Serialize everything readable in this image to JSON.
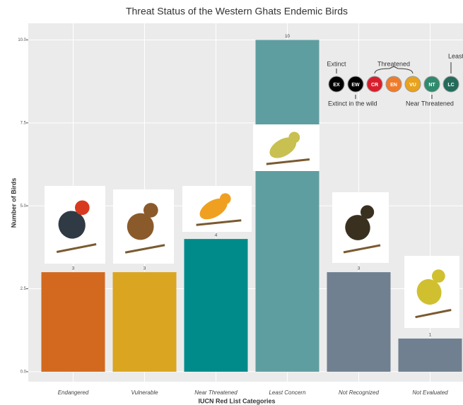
{
  "chart_data": {
    "type": "bar",
    "title": "Threat Status of the Western Ghats Endemic Birds",
    "x_label": "IUCN Red List Categories",
    "y_label": "Number of Birds",
    "categories": [
      "Endangered",
      "Vulnerable",
      "Near Threatened",
      "Least Concern",
      "Not Recognized",
      "Not Evaluated"
    ],
    "values": [
      3,
      3,
      4,
      10,
      3,
      1
    ],
    "value_labels": [
      "3",
      "3",
      "4",
      "10",
      "3",
      "1"
    ],
    "colors": [
      "#d2691e",
      "#daa520",
      "#008b8b",
      "#5f9ea0",
      "#708090",
      "#708090"
    ],
    "ylim": [
      -0.3,
      10.5
    ],
    "yticks": [
      {
        "value": 0,
        "label": "0.0"
      },
      {
        "value": 2.5,
        "label": "2.5"
      },
      {
        "value": 5,
        "label": "5.0"
      },
      {
        "value": 7.5,
        "label": "7.5"
      },
      {
        "value": 10,
        "label": "10.0"
      }
    ],
    "grid": true,
    "iucn_scale": {
      "above": [
        "Extinct",
        "Threatened",
        "Least Concern"
      ],
      "codes": [
        "EX",
        "EW",
        "CR",
        "EN",
        "VU",
        "NT",
        "LC"
      ],
      "code_colors": [
        "#000000",
        "#000000",
        "#d81e2c",
        "#f07c2a",
        "#e8a21c",
        "#2e8b6e",
        "#236b5a"
      ],
      "below": [
        "Extinct in the wild",
        "Near Threatened"
      ]
    }
  }
}
